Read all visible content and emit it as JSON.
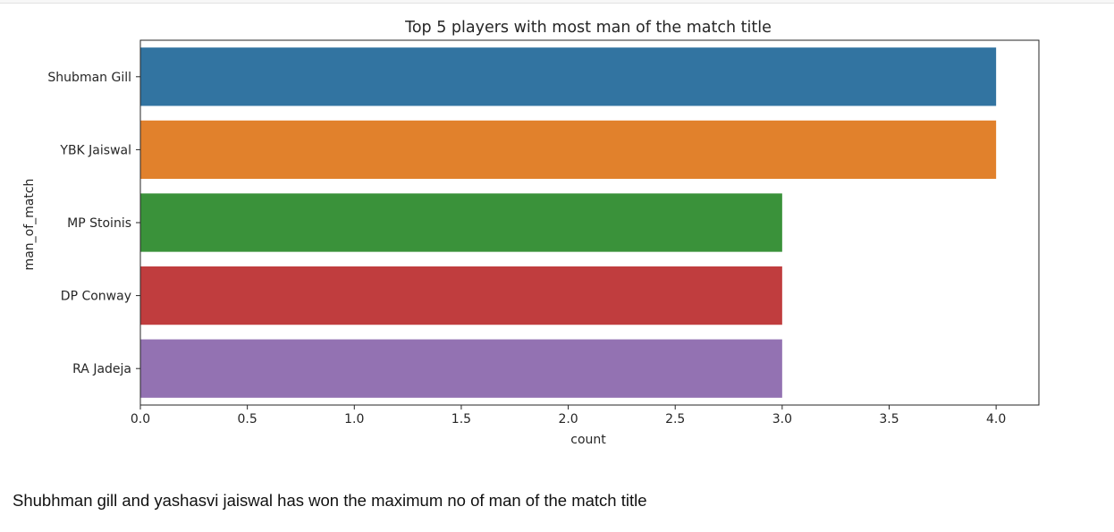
{
  "chart_data": {
    "type": "bar",
    "orientation": "horizontal",
    "title": "Top 5 players with most man of the match title",
    "xlabel": "count",
    "ylabel": "man_of_match",
    "categories": [
      "Shubman Gill",
      "YBK Jaiswal",
      "MP Stoinis",
      "DP Conway",
      "RA Jadeja"
    ],
    "values": [
      4,
      4,
      3,
      3,
      3
    ],
    "colors": [
      "#3274a1",
      "#e1812c",
      "#3a923a",
      "#c03d3e",
      "#9372b2"
    ],
    "xlim": [
      0,
      4.2
    ],
    "xticks": [
      "0.0",
      "0.5",
      "1.0",
      "1.5",
      "2.0",
      "2.5",
      "3.0",
      "3.5",
      "4.0"
    ],
    "grid": false,
    "legend": "none"
  },
  "notebook": {
    "markdown_text": "Shubhman gill and yashasvi jaiswal has won the maximum no of man of the match title"
  }
}
